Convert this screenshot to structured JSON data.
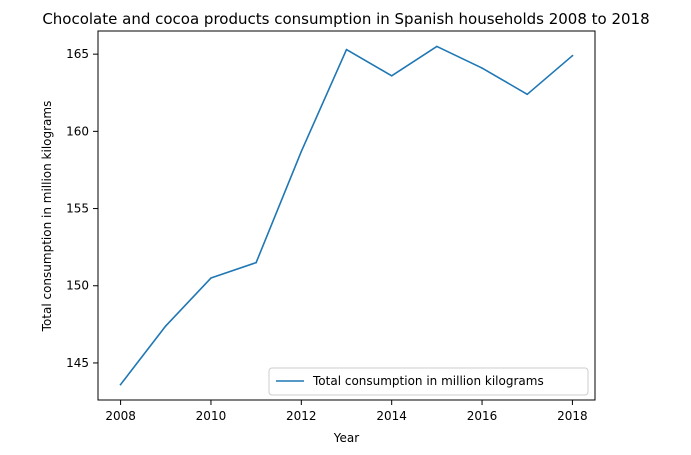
{
  "chart_data": {
    "type": "line",
    "title": "Chocolate and cocoa products consumption in Spanish households 2008 to 2018",
    "xlabel": "Year",
    "ylabel": "Total consumption in million kilograms",
    "x": [
      2008,
      2009,
      2010,
      2011,
      2012,
      2013,
      2014,
      2015,
      2016,
      2017,
      2018
    ],
    "series": [
      {
        "name": "Total consumption in million kilograms",
        "color": "#1f77b4",
        "values": [
          143.6,
          147.4,
          150.5,
          151.5,
          158.7,
          165.3,
          163.6,
          165.5,
          164.1,
          162.4,
          164.9
        ]
      }
    ],
    "xlim": [
      2007.5,
      2018.5
    ],
    "ylim": [
      142.6,
      166.5
    ],
    "xticks": [
      "2008",
      "2010",
      "2012",
      "2014",
      "2016",
      "2018"
    ],
    "yticks": [
      "145",
      "150",
      "155",
      "160",
      "165"
    ],
    "grid": false,
    "legend_position": "lower-right"
  }
}
